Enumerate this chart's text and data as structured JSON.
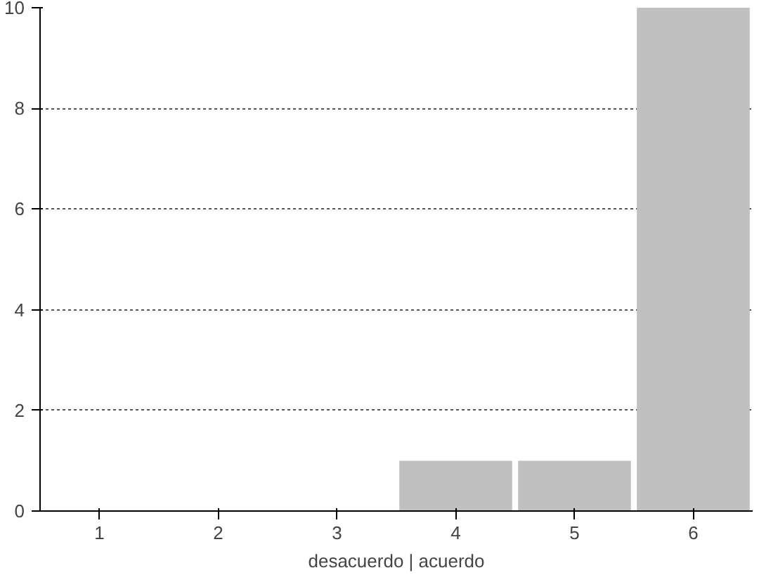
{
  "chart_data": {
    "type": "bar",
    "categories": [
      "1",
      "2",
      "3",
      "4",
      "5",
      "6"
    ],
    "values": [
      0,
      0,
      0,
      1,
      1,
      10
    ],
    "color": "#c0c0c0",
    "ylim": [
      0,
      10
    ],
    "yticks": [
      0,
      2,
      4,
      6,
      8,
      10
    ],
    "grid": "y",
    "xlabel": "desacuerdo | acuerdo"
  }
}
